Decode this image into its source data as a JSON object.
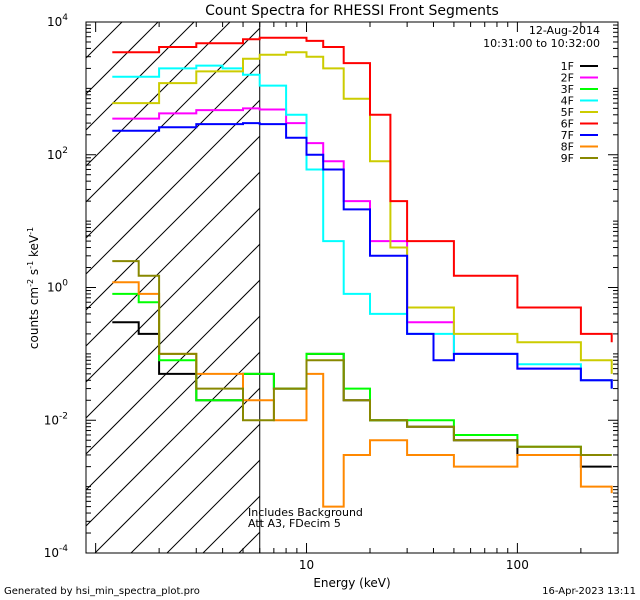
{
  "chart_data": {
    "type": "line",
    "title": "Count Spectra for RHESSI Front Segments",
    "xlabel": "Energy (keV)",
    "ylabel_base": "counts cm",
    "ylabel_exp1": "-2",
    "ylabel_mid": " s",
    "ylabel_exp2": "-1",
    "ylabel_end": " keV",
    "ylabel_exp3": "-1",
    "x_scale": "log",
    "y_scale": "log",
    "xlim": [
      0.9,
      300
    ],
    "ylim": [
      0.0001,
      10000
    ],
    "x_ticks": [
      {
        "value": 10,
        "label": "10"
      },
      {
        "value": 100,
        "label": "100"
      }
    ],
    "y_ticks": [
      {
        "value": 0.0001,
        "base": "10",
        "exp": "-4"
      },
      {
        "value": 0.01,
        "base": "10",
        "exp": "-2"
      },
      {
        "value": 1,
        "base": "10",
        "exp": "0"
      },
      {
        "value": 100,
        "base": "10",
        "exp": "2"
      },
      {
        "value": 10000,
        "base": "10",
        "exp": "4"
      }
    ],
    "shaded_region": {
      "x_from": 0.9,
      "x_to": 6,
      "style": "hatched"
    },
    "date_text": "12-Aug-2014",
    "time_range": "10:31:00 to 10:32:00",
    "annotation_line1": "Includes Background",
    "annotation_line2": "Att A3, FDecim 5",
    "series": [
      {
        "name": "1F",
        "color": "#000000",
        "x": [
          1.2,
          1.6,
          2.0,
          3.0,
          5.0,
          7.0,
          10,
          15,
          20,
          30,
          50,
          100,
          200,
          280
        ],
        "y": [
          0.3,
          0.2,
          0.05,
          0.02,
          0.05,
          0.03,
          0.1,
          0.02,
          0.01,
          0.008,
          0.005,
          0.003,
          0.002,
          0.002
        ]
      },
      {
        "name": "2F",
        "color": "#ff00ff",
        "x": [
          1.2,
          2.0,
          3.0,
          5.0,
          6.0,
          8.0,
          10,
          12,
          15,
          20,
          30,
          50,
          100,
          200,
          280
        ],
        "y": [
          350,
          420,
          470,
          500,
          480,
          300,
          150,
          80,
          20,
          5,
          0.3,
          0.1,
          0.06,
          0.04,
          0.03
        ]
      },
      {
        "name": "3F",
        "color": "#00ff00",
        "x": [
          1.2,
          1.6,
          2.0,
          3.0,
          5.0,
          7.0,
          10,
          15,
          20,
          30,
          50,
          100,
          200,
          280
        ],
        "y": [
          0.8,
          0.6,
          0.08,
          0.02,
          0.05,
          0.03,
          0.1,
          0.03,
          0.01,
          0.01,
          0.006,
          0.004,
          0.003,
          0.003
        ]
      },
      {
        "name": "4F",
        "color": "#00ffff",
        "x": [
          1.2,
          2.0,
          3.0,
          4.0,
          5.0,
          6.0,
          8.0,
          10,
          12,
          15,
          20,
          30,
          50,
          100,
          200,
          280
        ],
        "y": [
          1500,
          2000,
          2200,
          2000,
          1600,
          1100,
          400,
          60,
          5,
          0.8,
          0.4,
          0.2,
          0.1,
          0.07,
          0.04,
          0.03
        ]
      },
      {
        "name": "5F",
        "color": "#cccc00",
        "x": [
          1.2,
          2.0,
          3.0,
          5.0,
          6.0,
          8.0,
          10,
          12,
          15,
          20,
          25,
          30,
          50,
          100,
          200,
          280
        ],
        "y": [
          600,
          1200,
          1800,
          2800,
          3200,
          3500,
          3000,
          2000,
          700,
          80,
          4,
          0.5,
          0.2,
          0.15,
          0.08,
          0.05
        ]
      },
      {
        "name": "6F",
        "color": "#ff0000",
        "x": [
          1.2,
          2.0,
          3.0,
          5.0,
          6.0,
          8.0,
          10,
          12,
          15,
          20,
          25,
          30,
          50,
          100,
          200,
          280
        ],
        "y": [
          3500,
          4200,
          4800,
          5500,
          5800,
          5800,
          5200,
          4200,
          2400,
          400,
          20,
          5,
          1.5,
          0.5,
          0.2,
          0.15
        ]
      },
      {
        "name": "7F",
        "color": "#0000ff",
        "x": [
          1.2,
          2.0,
          3.0,
          5.0,
          6.0,
          8.0,
          10,
          12,
          15,
          20,
          30,
          40,
          50,
          100,
          200,
          280
        ],
        "y": [
          230,
          260,
          290,
          300,
          290,
          180,
          100,
          60,
          15,
          3,
          0.2,
          0.08,
          0.1,
          0.06,
          0.04,
          0.03
        ]
      },
      {
        "name": "8F",
        "color": "#ff8800",
        "x": [
          1.2,
          1.6,
          2.0,
          3.0,
          5.0,
          7.0,
          10,
          12,
          15,
          20,
          30,
          50,
          100,
          200,
          280
        ],
        "y": [
          1.2,
          0.8,
          0.1,
          0.05,
          0.02,
          0.01,
          0.05,
          0.0005,
          0.003,
          0.005,
          0.003,
          0.002,
          0.003,
          0.001,
          0.0008
        ]
      },
      {
        "name": "9F",
        "color": "#888800",
        "x": [
          1.2,
          1.6,
          2.0,
          3.0,
          5.0,
          7.0,
          10,
          15,
          20,
          30,
          50,
          100,
          200,
          280
        ],
        "y": [
          2.5,
          1.5,
          0.1,
          0.03,
          0.01,
          0.03,
          0.08,
          0.02,
          0.01,
          0.008,
          0.005,
          0.004,
          0.003,
          0.003
        ]
      }
    ]
  },
  "footer": {
    "generated_by": "Generated by hsi_min_spectra_plot.pro",
    "timestamp": "16-Apr-2023 13:11"
  }
}
